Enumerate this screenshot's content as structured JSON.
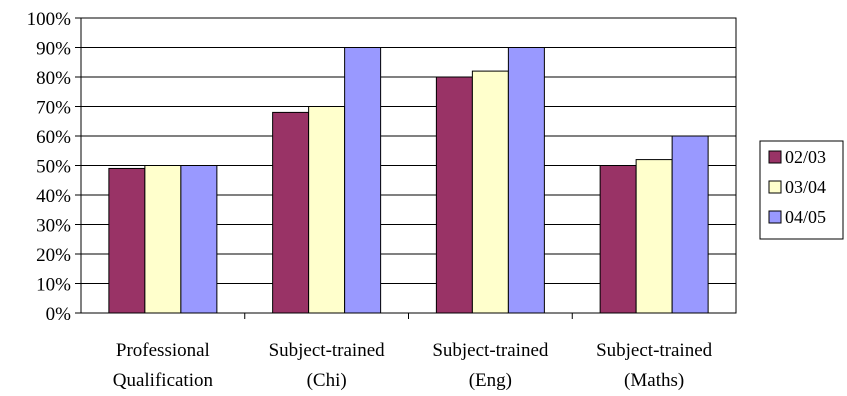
{
  "chart_data": {
    "type": "bar",
    "categories": [
      [
        "Professional",
        "Qualification"
      ],
      [
        "Subject-trained",
        "(Chi)"
      ],
      [
        "Subject-trained",
        "(Eng)"
      ],
      [
        "Subject-trained",
        "(Maths)"
      ]
    ],
    "series": [
      {
        "name": "02/03",
        "color": "#993366",
        "values": [
          49,
          68,
          80,
          50
        ]
      },
      {
        "name": "03/04",
        "color": "#FFFFCC",
        "values": [
          50,
          70,
          82,
          52
        ]
      },
      {
        "name": "04/05",
        "color": "#9999FF",
        "values": [
          50,
          90,
          90,
          60
        ]
      }
    ],
    "yticks": [
      "0%",
      "10%",
      "20%",
      "30%",
      "40%",
      "50%",
      "60%",
      "70%",
      "80%",
      "90%",
      "100%"
    ],
    "ylim": [
      0,
      100
    ],
    "grid": true,
    "legend_position": "right"
  }
}
